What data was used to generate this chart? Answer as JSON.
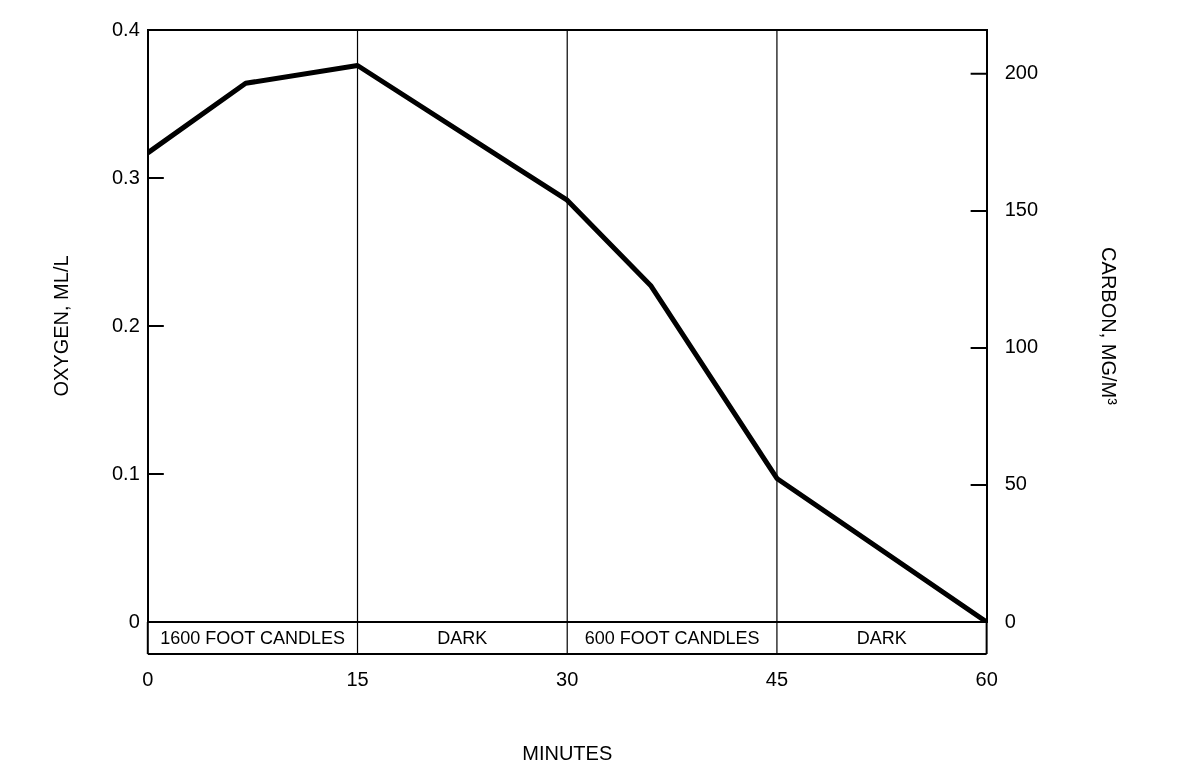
{
  "chart_data": {
    "type": "line",
    "xlabel": "MINUTES",
    "ylabel": "OXYGEN, ML/L",
    "y2label": "CARBON, MG/M³",
    "x": [
      0,
      7,
      15,
      30,
      36,
      45,
      60
    ],
    "series": [
      {
        "color": "#000000",
        "values": [
          0.317,
          0.364,
          0.376,
          0.285,
          0.227,
          0.097,
          0
        ]
      }
    ],
    "xlim": [
      0,
      60
    ],
    "xticks": [
      0,
      15,
      30,
      45,
      60
    ],
    "ylim": [
      0,
      0.4
    ],
    "yticks": [
      0,
      0.1,
      0.2,
      0.3,
      0.4
    ],
    "y2lim": [
      0,
      216
    ],
    "y2ticks": [
      0,
      50,
      100,
      150,
      200
    ],
    "ref_lines": [
      {
        "axis": "x",
        "value": 15,
        "color": "#000000"
      },
      {
        "axis": "x",
        "value": 30,
        "color": "#000000"
      },
      {
        "axis": "x",
        "value": 45,
        "color": "#000000"
      }
    ],
    "annotations": [
      "1600 FOOT CANDLES",
      "DARK",
      "600 FOOT CANDLES",
      "DARK"
    ],
    "grid": false,
    "legend": false,
    "marker": "none",
    "line_style": "solid"
  }
}
